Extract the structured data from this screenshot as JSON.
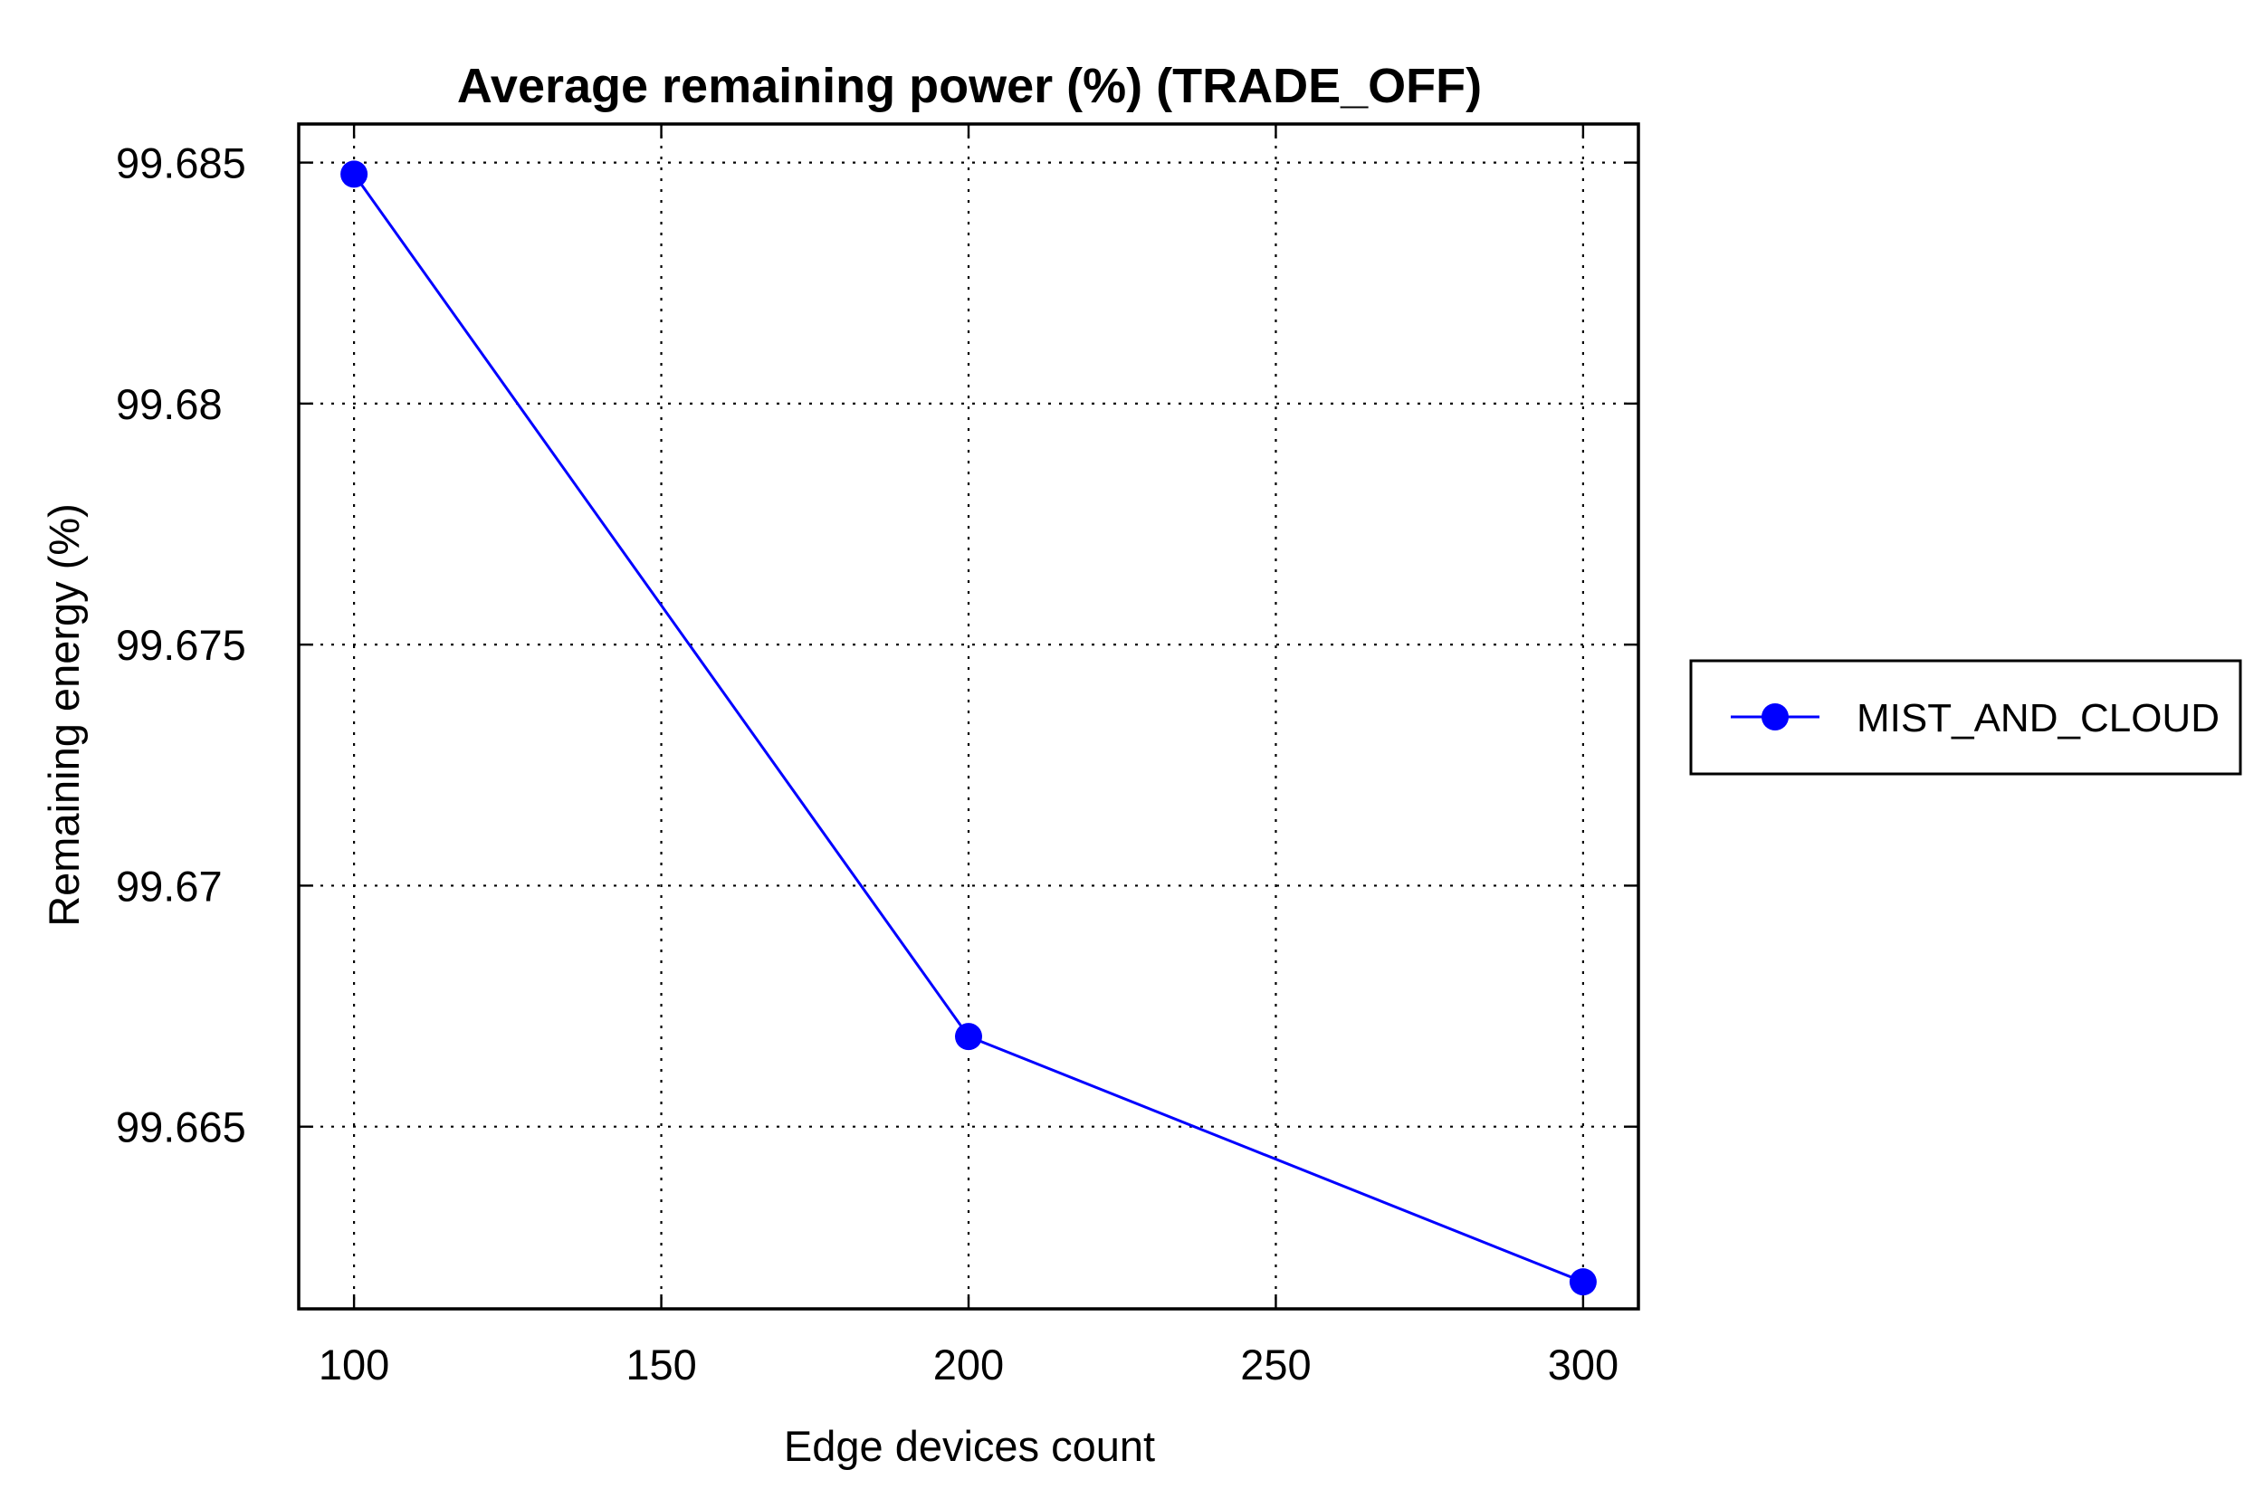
{
  "chart_data": {
    "type": "line",
    "title": "Average remaining power (%) (TRADE_OFF)",
    "xlabel": "Edge devices count",
    "ylabel": "Remaining energy (%)",
    "x": [
      100,
      200,
      300
    ],
    "xlim": [
      91,
      309
    ],
    "ylim": [
      99.66122,
      99.6858
    ],
    "xticks": [
      100,
      150,
      200,
      250,
      300
    ],
    "xtick_labels": [
      "100",
      "150",
      "200",
      "250",
      "300"
    ],
    "yticks": [
      99.665,
      99.67,
      99.675,
      99.68,
      99.685
    ],
    "ytick_labels": [
      "99.665",
      "99.67",
      "99.675",
      "99.68",
      "99.685"
    ],
    "grid": true,
    "legend_position": "outside-right",
    "series": [
      {
        "name": "MIST_AND_CLOUD",
        "color": "#0000ff",
        "marker": "circle",
        "values": [
          99.68476,
          99.66687,
          99.66178
        ]
      }
    ]
  }
}
